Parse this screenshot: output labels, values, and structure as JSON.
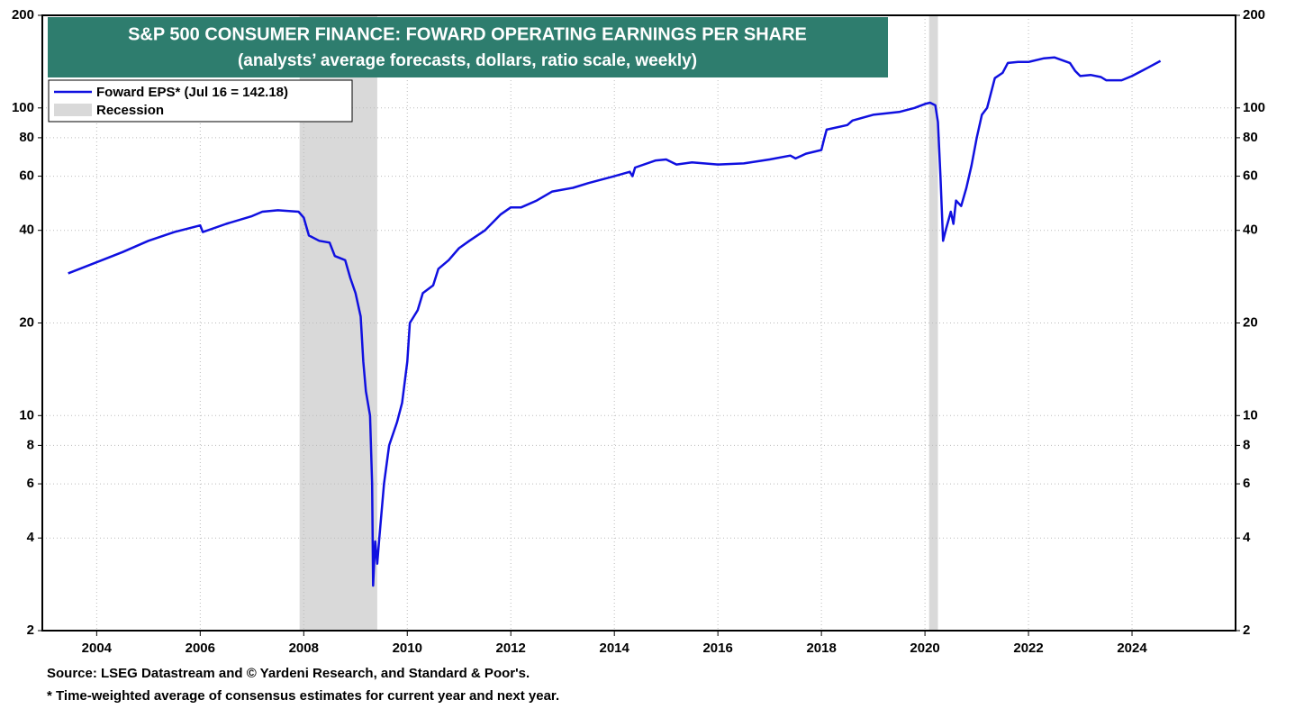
{
  "chart_data": {
    "type": "line",
    "title": "S&P 500 CONSUMER FINANCE: FOWARD OPERATING EARNINGS PER SHARE",
    "subtitle": "(analysts’ average forecasts, dollars, ratio scale, weekly)",
    "log_scale": true,
    "grid": true,
    "legend": "upper left",
    "recession_label": "Recession",
    "recession_color": "#d9d9d9",
    "recessions": [
      [
        2007.92,
        2009.42
      ],
      [
        2020.08,
        2020.25
      ]
    ],
    "xlim": [
      2002.95,
      2026.0
    ],
    "xticks": [
      2004,
      2006,
      2008,
      2010,
      2012,
      2014,
      2016,
      2018,
      2020,
      2022,
      2024
    ],
    "ylim": [
      2,
      200
    ],
    "yticks": [
      2,
      4,
      6,
      8,
      10,
      20,
      40,
      60,
      80,
      100,
      200
    ],
    "y2lim": [
      2,
      200
    ],
    "y2ticks": [
      2,
      4,
      6,
      8,
      10,
      20,
      40,
      60,
      80,
      100,
      200
    ],
    "series": [
      {
        "name": "Foward EPS* (Jul 16 = 142.18)",
        "color": "#1010e0",
        "x": [
          2003.45,
          2004.0,
          2004.5,
          2005.0,
          2005.5,
          2006.0,
          2006.05,
          2006.5,
          2007.0,
          2007.2,
          2007.5,
          2007.9,
          2008.0,
          2008.1,
          2008.3,
          2008.5,
          2008.6,
          2008.8,
          2008.9,
          2009.0,
          2009.1,
          2009.15,
          2009.2,
          2009.28,
          2009.32,
          2009.34,
          2009.38,
          2009.42,
          2009.46,
          2009.55,
          2009.65,
          2009.8,
          2009.9,
          2010.0,
          2010.05,
          2010.2,
          2010.3,
          2010.5,
          2010.6,
          2010.8,
          2011.0,
          2011.2,
          2011.5,
          2011.8,
          2012.0,
          2012.2,
          2012.5,
          2012.8,
          2013.2,
          2013.5,
          2014.0,
          2014.3,
          2014.35,
          2014.4,
          2014.8,
          2015.0,
          2015.2,
          2015.5,
          2016.0,
          2016.5,
          2017.0,
          2017.4,
          2017.5,
          2017.7,
          2018.0,
          2018.05,
          2018.1,
          2018.5,
          2018.6,
          2019.0,
          2019.5,
          2019.8,
          2020.0,
          2020.1,
          2020.2,
          2020.25,
          2020.3,
          2020.35,
          2020.4,
          2020.5,
          2020.55,
          2020.6,
          2020.7,
          2020.8,
          2020.9,
          2021.0,
          2021.1,
          2021.2,
          2021.35,
          2021.5,
          2021.6,
          2021.8,
          2022.0,
          2022.3,
          2022.5,
          2022.8,
          2022.9,
          2023.0,
          2023.2,
          2023.4,
          2023.5,
          2023.8,
          2024.0,
          2024.3,
          2024.55
        ],
        "values": [
          29,
          31.5,
          34,
          37,
          39.5,
          41.5,
          39.5,
          42,
          44.5,
          46,
          46.5,
          46,
          44,
          38.5,
          37,
          36.5,
          33,
          32,
          28,
          25,
          21,
          15,
          12,
          10,
          6,
          2.8,
          3.9,
          3.3,
          4,
          6,
          8,
          9.5,
          11,
          15,
          20,
          22,
          25,
          26.5,
          30,
          32,
          35,
          37,
          40,
          45,
          47.5,
          47.5,
          50,
          53.5,
          55,
          57,
          60,
          62,
          60,
          64,
          67.5,
          68,
          65.5,
          66.5,
          65.5,
          66,
          68,
          70,
          68.5,
          71,
          73,
          79,
          85,
          88,
          91,
          95,
          97,
          100,
          103,
          104,
          102,
          90,
          60,
          37,
          40,
          46,
          42,
          50,
          48,
          55,
          65,
          80,
          95,
          100,
          125,
          130,
          140,
          141,
          141,
          145,
          146,
          140,
          132,
          127,
          128,
          126,
          123,
          123,
          127,
          135,
          142.18
        ]
      }
    ],
    "source": "Source: LSEG Datastream and © Yardeni Research, and Standard & Poor's.",
    "note": "* Time-weighted average of consensus estimates for current year and next year."
  }
}
